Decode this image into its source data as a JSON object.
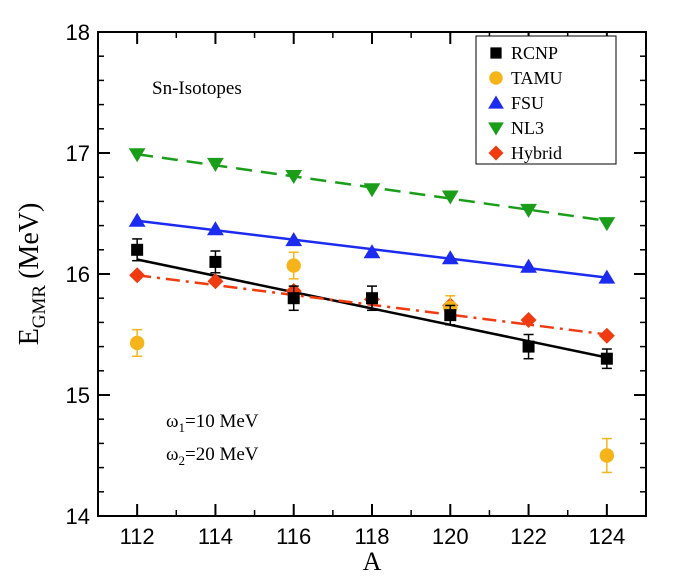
{
  "chart_data": {
    "type": "scatter",
    "xlabel": "A",
    "ylabel_main": "E",
    "ylabel_sub": "GMR",
    "ylabel_unit": "(MeV)",
    "xlim": [
      111,
      125
    ],
    "ylim": [
      14,
      18
    ],
    "xticks": [
      112,
      114,
      116,
      118,
      120,
      122,
      124
    ],
    "yticks": [
      14,
      15,
      16,
      17,
      18
    ],
    "legend_position": "top-right",
    "annotations": {
      "isotopes": "Sn-Isotopes",
      "omega1_sym": "ω",
      "omega1_sub": "1",
      "omega1_val": "=10 MeV",
      "omega2_sym": "ω",
      "omega2_sub": "2",
      "omega2_val": "=20 MeV"
    },
    "series": [
      {
        "name": "RCNP",
        "color": "#000000",
        "marker": "square",
        "x": [
          112,
          114,
          116,
          118,
          120,
          122,
          124
        ],
        "y": [
          16.2,
          16.1,
          15.8,
          15.8,
          15.66,
          15.4,
          15.3
        ],
        "err": [
          0.09,
          0.09,
          0.1,
          0.1,
          0.08,
          0.1,
          0.08
        ],
        "fit": {
          "style": "solid",
          "y_start": 16.12,
          "y_end": 15.31
        }
      },
      {
        "name": "TAMU",
        "color": "#f5b41a",
        "marker": "circle",
        "x": [
          112,
          116,
          120,
          124
        ],
        "y": [
          15.43,
          16.07,
          15.72,
          14.5
        ],
        "err": [
          0.11,
          0.11,
          0.1,
          0.14
        ]
      },
      {
        "name": "FSU",
        "color": "#1c2bf0",
        "marker": "triangle-up",
        "x": [
          112,
          114,
          116,
          118,
          120,
          122,
          124
        ],
        "y": [
          16.44,
          16.37,
          16.28,
          16.18,
          16.13,
          16.06,
          15.97
        ],
        "fit": {
          "style": "solid",
          "y_start": 16.44,
          "y_end": 15.97
        }
      },
      {
        "name": "NL3",
        "color": "#1a9e1a",
        "marker": "triangle-down",
        "x": [
          112,
          114,
          116,
          118,
          120,
          122,
          124
        ],
        "y": [
          16.99,
          16.91,
          16.81,
          16.7,
          16.64,
          16.53,
          16.42
        ],
        "fit": {
          "style": "dashed",
          "y_start": 16.99,
          "y_end": 16.44
        }
      },
      {
        "name": "Hybrid",
        "color": "#f03a10",
        "marker": "diamond",
        "x": [
          112,
          114,
          116,
          118,
          120,
          122,
          124
        ],
        "y": [
          15.99,
          15.94,
          15.86,
          15.79,
          15.74,
          15.62,
          15.49
        ],
        "fit": {
          "style": "dashdot",
          "y_start": 15.99,
          "y_end": 15.5
        }
      }
    ]
  }
}
